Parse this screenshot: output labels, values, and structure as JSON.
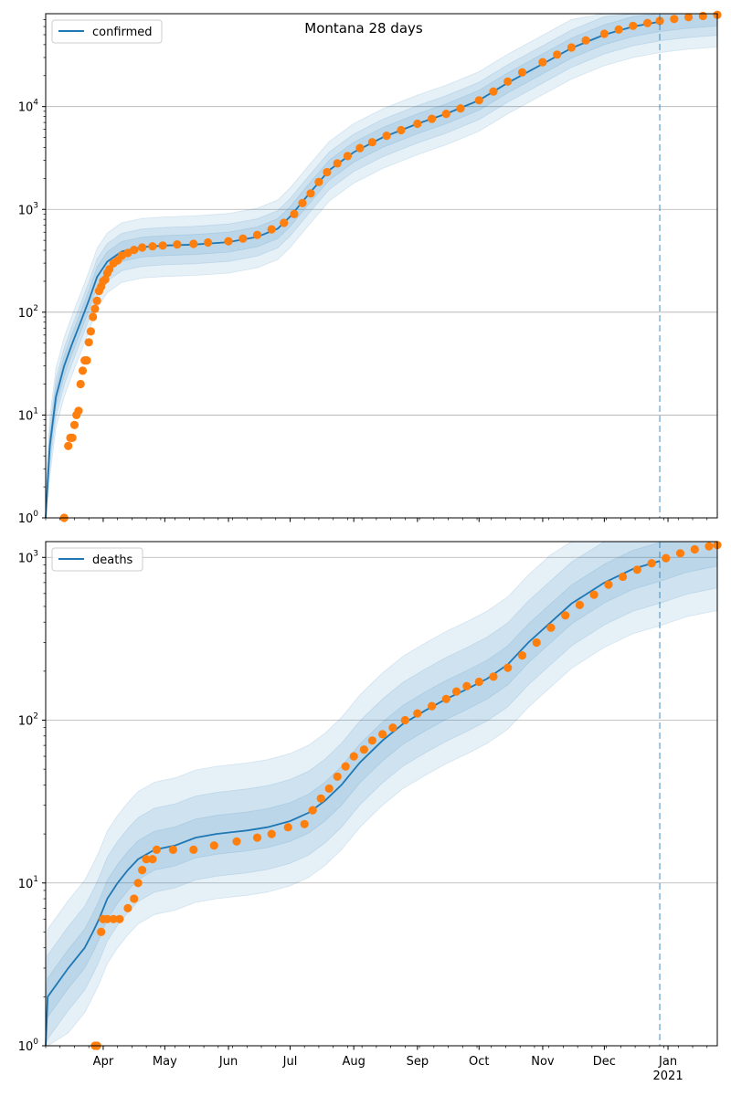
{
  "figure_title": "Montana 28 days",
  "colors": {
    "model_line": "#1f77b4",
    "observed": "#ff7f0e",
    "band": "#1f77b4",
    "forecast_line": "#1f77b4",
    "grid": "#b0b0b0"
  },
  "x_ticks": [
    {
      "label": "Apr",
      "date": "2020-04-01"
    },
    {
      "label": "May",
      "date": "2020-05-01"
    },
    {
      "label": "Jun",
      "date": "2020-06-01"
    },
    {
      "label": "Jul",
      "date": "2020-07-01"
    },
    {
      "label": "Aug",
      "date": "2020-08-01"
    },
    {
      "label": "Sep",
      "date": "2020-09-01"
    },
    {
      "label": "Oct",
      "date": "2020-10-01"
    },
    {
      "label": "Nov",
      "date": "2020-11-01"
    },
    {
      "label": "Dec",
      "date": "2020-12-01"
    },
    {
      "label": "Jan",
      "date": "2021-01-01",
      "sublabel": "2021"
    }
  ],
  "chart_data": [
    {
      "type": "line",
      "scale": "log",
      "legend": "confirmed",
      "legend_loc": "top-left",
      "grid": "y",
      "xlim": [
        "2020-03-04",
        "2021-01-25"
      ],
      "ylim": [
        1,
        80000
      ],
      "y_ticks": [
        {
          "value": 1,
          "base": "10",
          "exp": "0"
        },
        {
          "value": 10,
          "base": "10",
          "exp": "1"
        },
        {
          "value": 100,
          "base": "10",
          "exp": "2"
        },
        {
          "value": 1000,
          "base": "10",
          "exp": "3"
        },
        {
          "value": 10000,
          "base": "10",
          "exp": "4"
        }
      ],
      "forecast_start": "2020-12-28",
      "model": [
        [
          "2020-03-04",
          1
        ],
        [
          "2020-03-06",
          5
        ],
        [
          "2020-03-09",
          15
        ],
        [
          "2020-03-13",
          30
        ],
        [
          "2020-03-17",
          50
        ],
        [
          "2020-03-21",
          80
        ],
        [
          "2020-03-25",
          130
        ],
        [
          "2020-03-29",
          220
        ],
        [
          "2020-04-03",
          310
        ],
        [
          "2020-04-10",
          390
        ],
        [
          "2020-04-20",
          430
        ],
        [
          "2020-05-01",
          445
        ],
        [
          "2020-05-15",
          455
        ],
        [
          "2020-06-01",
          480
        ],
        [
          "2020-06-15",
          540
        ],
        [
          "2020-06-25",
          650
        ],
        [
          "2020-07-01",
          850
        ],
        [
          "2020-07-10",
          1400
        ],
        [
          "2020-07-20",
          2400
        ],
        [
          "2020-08-01",
          3600
        ],
        [
          "2020-08-15",
          5000
        ],
        [
          "2020-09-01",
          6800
        ],
        [
          "2020-09-15",
          8500
        ],
        [
          "2020-10-01",
          11500
        ],
        [
          "2020-10-15",
          17000
        ],
        [
          "2020-11-01",
          26000
        ],
        [
          "2020-11-15",
          37000
        ],
        [
          "2020-12-01",
          50000
        ],
        [
          "2020-12-15",
          60000
        ],
        [
          "2020-12-28",
          67000
        ],
        [
          "2021-01-10",
          72000
        ],
        [
          "2021-01-25",
          76000
        ]
      ],
      "band_factors": [
        [
          1.25,
          0.8
        ],
        [
          1.5,
          0.65
        ],
        [
          1.9,
          0.5
        ]
      ],
      "observed": [
        [
          "2020-03-13",
          1
        ],
        [
          "2020-03-15",
          5
        ],
        [
          "2020-03-16",
          6
        ],
        [
          "2020-03-17",
          6
        ],
        [
          "2020-03-18",
          8
        ],
        [
          "2020-03-19",
          10
        ],
        [
          "2020-03-20",
          11
        ],
        [
          "2020-03-21",
          20
        ],
        [
          "2020-03-22",
          27
        ],
        [
          "2020-03-23",
          34
        ],
        [
          "2020-03-24",
          34
        ],
        [
          "2020-03-25",
          51
        ],
        [
          "2020-03-26",
          65
        ],
        [
          "2020-03-27",
          90
        ],
        [
          "2020-03-28",
          108
        ],
        [
          "2020-03-29",
          129
        ],
        [
          "2020-03-30",
          161
        ],
        [
          "2020-03-31",
          177
        ],
        [
          "2020-04-01",
          200
        ],
        [
          "2020-04-02",
          208
        ],
        [
          "2020-04-03",
          240
        ],
        [
          "2020-04-04",
          262
        ],
        [
          "2020-04-06",
          299
        ],
        [
          "2020-04-08",
          319
        ],
        [
          "2020-04-10",
          354
        ],
        [
          "2020-04-13",
          377
        ],
        [
          "2020-04-16",
          404
        ],
        [
          "2020-04-20",
          426
        ],
        [
          "2020-04-25",
          437
        ],
        [
          "2020-04-30",
          445
        ],
        [
          "2020-05-07",
          456
        ],
        [
          "2020-05-15",
          462
        ],
        [
          "2020-05-22",
          476
        ],
        [
          "2020-06-01",
          490
        ],
        [
          "2020-06-08",
          520
        ],
        [
          "2020-06-15",
          565
        ],
        [
          "2020-06-22",
          640
        ],
        [
          "2020-06-28",
          740
        ],
        [
          "2020-07-03",
          900
        ],
        [
          "2020-07-07",
          1150
        ],
        [
          "2020-07-11",
          1430
        ],
        [
          "2020-07-15",
          1850
        ],
        [
          "2020-07-19",
          2300
        ],
        [
          "2020-07-24",
          2800
        ],
        [
          "2020-07-29",
          3300
        ],
        [
          "2020-08-04",
          3950
        ],
        [
          "2020-08-10",
          4500
        ],
        [
          "2020-08-17",
          5200
        ],
        [
          "2020-08-24",
          5900
        ],
        [
          "2020-09-01",
          6800
        ],
        [
          "2020-09-08",
          7600
        ],
        [
          "2020-09-15",
          8500
        ],
        [
          "2020-09-22",
          9600
        ],
        [
          "2020-10-01",
          11500
        ],
        [
          "2020-10-08",
          14000
        ],
        [
          "2020-10-15",
          17500
        ],
        [
          "2020-10-22",
          21500
        ],
        [
          "2020-11-01",
          27000
        ],
        [
          "2020-11-08",
          32000
        ],
        [
          "2020-11-15",
          37500
        ],
        [
          "2020-11-22",
          44000
        ],
        [
          "2020-12-01",
          51000
        ],
        [
          "2020-12-08",
          56000
        ],
        [
          "2020-12-15",
          61000
        ],
        [
          "2020-12-22",
          65000
        ],
        [
          "2020-12-28",
          68000
        ],
        [
          "2021-01-04",
          71000
        ],
        [
          "2021-01-11",
          74000
        ],
        [
          "2021-01-18",
          76000
        ],
        [
          "2021-01-25",
          78000
        ]
      ]
    },
    {
      "type": "line",
      "scale": "log",
      "legend": "deaths",
      "legend_loc": "top-left",
      "grid": "y",
      "xlim": [
        "2020-03-04",
        "2021-01-25"
      ],
      "ylim": [
        1,
        1250
      ],
      "y_ticks": [
        {
          "value": 1,
          "base": "10",
          "exp": "0"
        },
        {
          "value": 10,
          "base": "10",
          "exp": "1"
        },
        {
          "value": 100,
          "base": "10",
          "exp": "2"
        },
        {
          "value": 1000,
          "base": "10",
          "exp": "3"
        }
      ],
      "forecast_start": "2020-12-28",
      "model": [
        [
          "2020-03-04",
          1
        ],
        [
          "2020-03-05",
          2
        ],
        [
          "2020-03-15",
          3
        ],
        [
          "2020-03-23",
          4
        ],
        [
          "2020-03-27",
          5
        ],
        [
          "2020-03-30",
          6
        ],
        [
          "2020-04-03",
          8
        ],
        [
          "2020-04-08",
          10
        ],
        [
          "2020-04-13",
          12
        ],
        [
          "2020-04-18",
          14
        ],
        [
          "2020-04-26",
          16
        ],
        [
          "2020-05-06",
          17
        ],
        [
          "2020-05-16",
          19
        ],
        [
          "2020-05-26",
          20
        ],
        [
          "2020-06-10",
          21
        ],
        [
          "2020-06-20",
          22
        ],
        [
          "2020-07-01",
          24
        ],
        [
          "2020-07-10",
          27
        ],
        [
          "2020-07-18",
          32
        ],
        [
          "2020-07-26",
          40
        ],
        [
          "2020-08-04",
          55
        ],
        [
          "2020-08-15",
          75
        ],
        [
          "2020-08-25",
          95
        ],
        [
          "2020-09-05",
          115
        ],
        [
          "2020-09-15",
          135
        ],
        [
          "2020-09-25",
          155
        ],
        [
          "2020-10-05",
          180
        ],
        [
          "2020-10-15",
          220
        ],
        [
          "2020-10-25",
          300
        ],
        [
          "2020-11-05",
          400
        ],
        [
          "2020-11-15",
          520
        ],
        [
          "2020-12-01",
          700
        ],
        [
          "2020-12-15",
          850
        ],
        [
          "2020-12-28",
          950
        ],
        [
          "2021-01-10",
          1080
        ],
        [
          "2021-01-25",
          1180
        ]
      ],
      "band_factors": [
        [
          1.3,
          0.75
        ],
        [
          1.8,
          0.55
        ],
        [
          2.6,
          0.4
        ]
      ],
      "observed": [
        [
          "2020-03-28",
          1
        ],
        [
          "2020-03-29",
          1
        ],
        [
          "2020-03-31",
          5
        ],
        [
          "2020-04-01",
          6
        ],
        [
          "2020-04-03",
          6
        ],
        [
          "2020-04-06",
          6
        ],
        [
          "2020-04-09",
          6
        ],
        [
          "2020-04-13",
          7
        ],
        [
          "2020-04-16",
          8
        ],
        [
          "2020-04-18",
          10
        ],
        [
          "2020-04-20",
          12
        ],
        [
          "2020-04-22",
          14
        ],
        [
          "2020-04-25",
          14
        ],
        [
          "2020-04-27",
          16
        ],
        [
          "2020-05-05",
          16
        ],
        [
          "2020-05-15",
          16
        ],
        [
          "2020-05-25",
          17
        ],
        [
          "2020-06-05",
          18
        ],
        [
          "2020-06-15",
          19
        ],
        [
          "2020-06-22",
          20
        ],
        [
          "2020-06-30",
          22
        ],
        [
          "2020-07-08",
          23
        ],
        [
          "2020-07-12",
          28
        ],
        [
          "2020-07-16",
          33
        ],
        [
          "2020-07-20",
          38
        ],
        [
          "2020-07-24",
          45
        ],
        [
          "2020-07-28",
          52
        ],
        [
          "2020-08-01",
          60
        ],
        [
          "2020-08-06",
          66
        ],
        [
          "2020-08-10",
          75
        ],
        [
          "2020-08-15",
          82
        ],
        [
          "2020-08-20",
          90
        ],
        [
          "2020-08-26",
          100
        ],
        [
          "2020-09-01",
          110
        ],
        [
          "2020-09-08",
          122
        ],
        [
          "2020-09-15",
          135
        ],
        [
          "2020-09-20",
          150
        ],
        [
          "2020-09-25",
          162
        ],
        [
          "2020-10-01",
          172
        ],
        [
          "2020-10-08",
          185
        ],
        [
          "2020-10-15",
          210
        ],
        [
          "2020-10-22",
          250
        ],
        [
          "2020-10-29",
          300
        ],
        [
          "2020-11-05",
          370
        ],
        [
          "2020-11-12",
          440
        ],
        [
          "2020-11-19",
          510
        ],
        [
          "2020-11-26",
          590
        ],
        [
          "2020-12-03",
          680
        ],
        [
          "2020-12-10",
          760
        ],
        [
          "2020-12-17",
          840
        ],
        [
          "2020-12-24",
          920
        ],
        [
          "2020-12-31",
          990
        ],
        [
          "2021-01-07",
          1060
        ],
        [
          "2021-01-14",
          1120
        ],
        [
          "2021-01-21",
          1170
        ],
        [
          "2021-01-25",
          1190
        ]
      ]
    }
  ]
}
